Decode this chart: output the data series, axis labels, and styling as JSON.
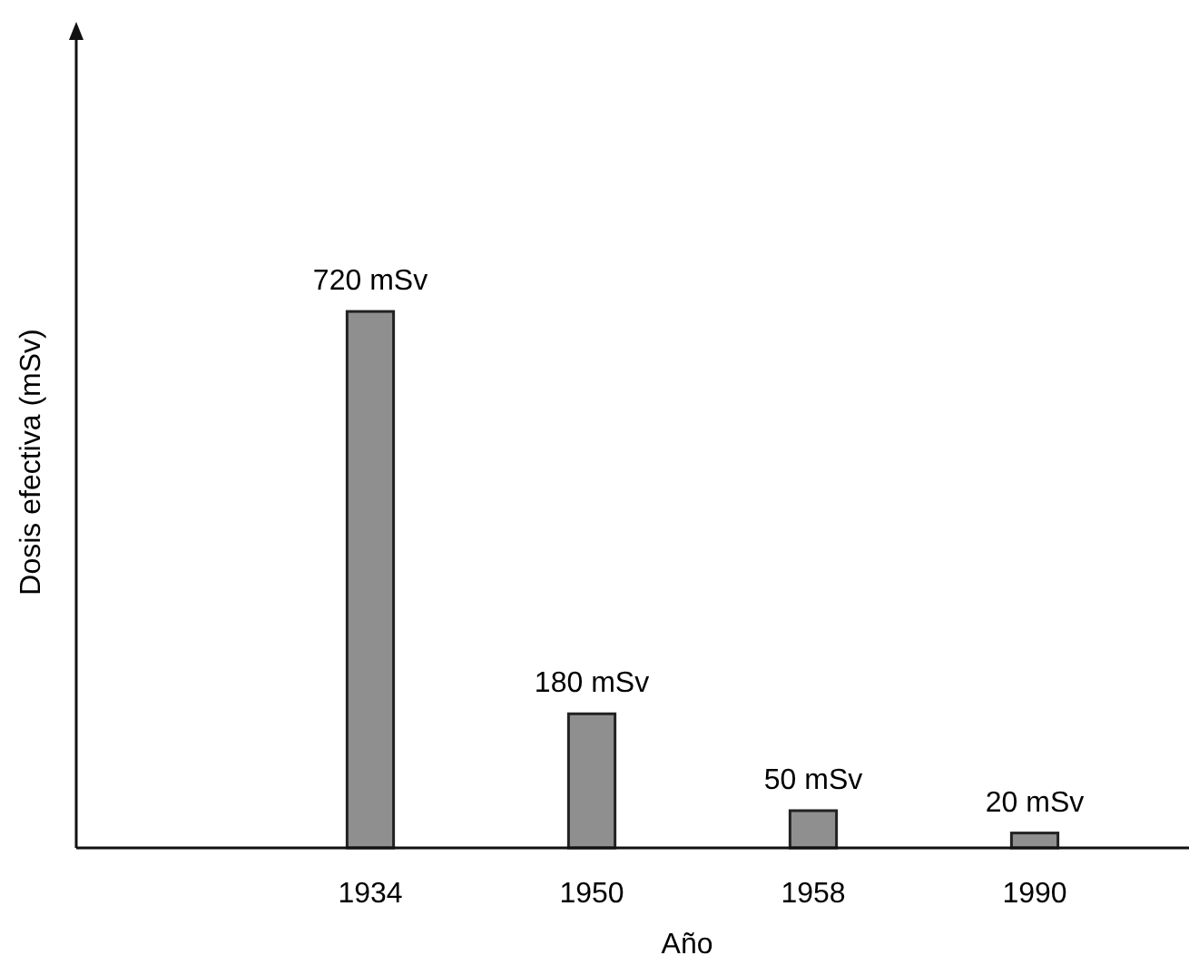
{
  "chart_data": {
    "type": "bar",
    "xlabel": "Año",
    "ylabel": "Dosis efectiva (mSv)",
    "categories": [
      "1934",
      "1950",
      "1958",
      "1990"
    ],
    "values": [
      720,
      180,
      50,
      20
    ],
    "value_labels": [
      "720 mSv",
      "180 mSv",
      "50 mSv",
      "20 mSv"
    ],
    "color": "#8f8f8f"
  }
}
